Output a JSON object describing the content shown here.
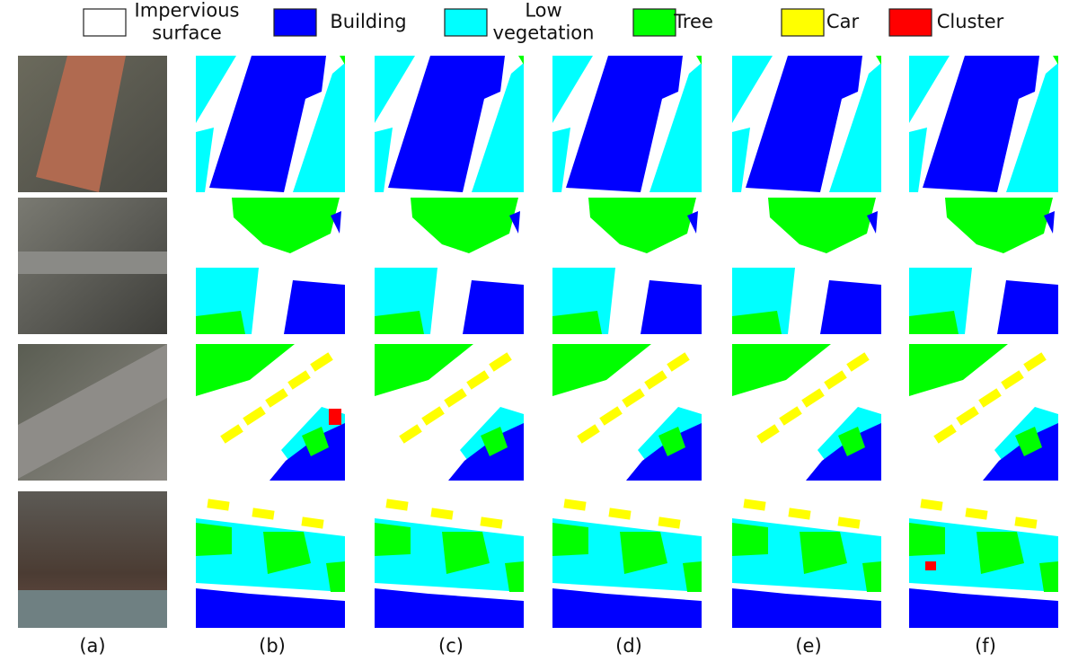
{
  "legend": [
    {
      "label": [
        "Impervious",
        "surface"
      ],
      "color": "#ffffff"
    },
    {
      "label": [
        "Building"
      ],
      "color": "#0000ff"
    },
    {
      "label": [
        "Low",
        "vegetation"
      ],
      "color": "#00ffff"
    },
    {
      "label": [
        "Tree"
      ],
      "color": "#00ff00"
    },
    {
      "label": [
        "Car"
      ],
      "color": "#ffff00"
    },
    {
      "label": [
        "Cluster"
      ],
      "color": "#ff0000"
    }
  ],
  "columns": [
    "(a)",
    "(b)",
    "(c)",
    "(d)",
    "(e)",
    "(f)"
  ]
}
